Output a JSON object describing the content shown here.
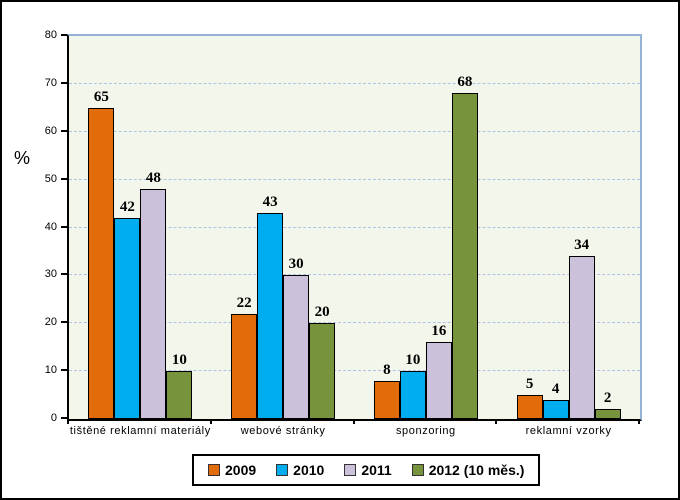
{
  "chart_data": {
    "type": "bar",
    "title": "",
    "ylabel": "%",
    "xlabel": "",
    "ylim": [
      0,
      80
    ],
    "ytick_step": 10,
    "grid": "horizontal-dashed",
    "legend_position": "bottom",
    "plot_bg_color": "#F3F6EA",
    "gridline_color": "#AEC4E7",
    "plot_border_color": "#95B3D7",
    "categories": [
      "tištěné reklamní materiály",
      "webové stránky",
      "sponzoring",
      "reklamní vzorky"
    ],
    "series": [
      {
        "name": "2009",
        "color": "#E36C0A",
        "values": [
          65,
          22,
          8,
          5
        ]
      },
      {
        "name": "2010",
        "color": "#00AEEF",
        "values": [
          42,
          43,
          10,
          4
        ]
      },
      {
        "name": "2011",
        "color": "#CCC1DA",
        "values": [
          48,
          30,
          16,
          34
        ]
      },
      {
        "name": "2012 (10 měs.)",
        "color": "#77933C",
        "values": [
          10,
          20,
          68,
          2
        ]
      }
    ]
  }
}
